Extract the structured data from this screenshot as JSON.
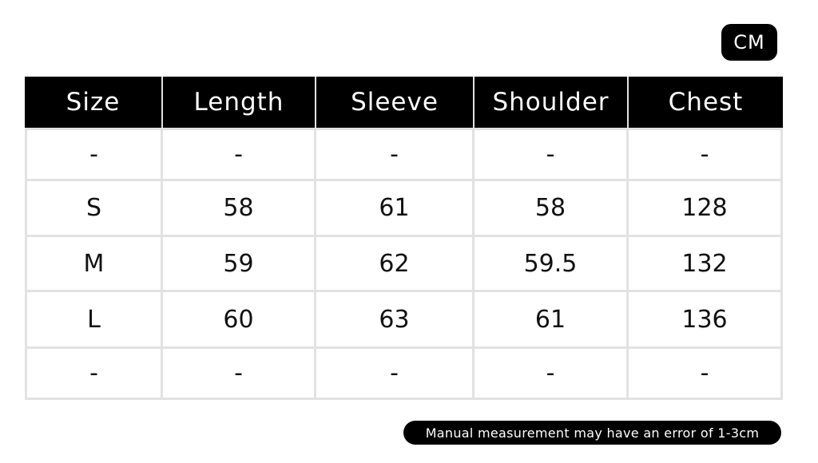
{
  "unit": "CM",
  "table": {
    "headers": [
      "Size",
      "Length",
      "Sleeve",
      "Shoulder",
      "Chest"
    ],
    "rows": [
      [
        "-",
        "-",
        "-",
        "-",
        "-"
      ],
      [
        "S",
        "58",
        "61",
        "58",
        "128"
      ],
      [
        "M",
        "59",
        "62",
        "59.5",
        "132"
      ],
      [
        "L",
        "60",
        "63",
        "61",
        "136"
      ],
      [
        "-",
        "-",
        "-",
        "-",
        "-"
      ]
    ]
  },
  "note": "Manual measurement may have an error of 1-3cm",
  "colors": {
    "header_bg": "#000000",
    "grid": "#e2e2e2"
  }
}
